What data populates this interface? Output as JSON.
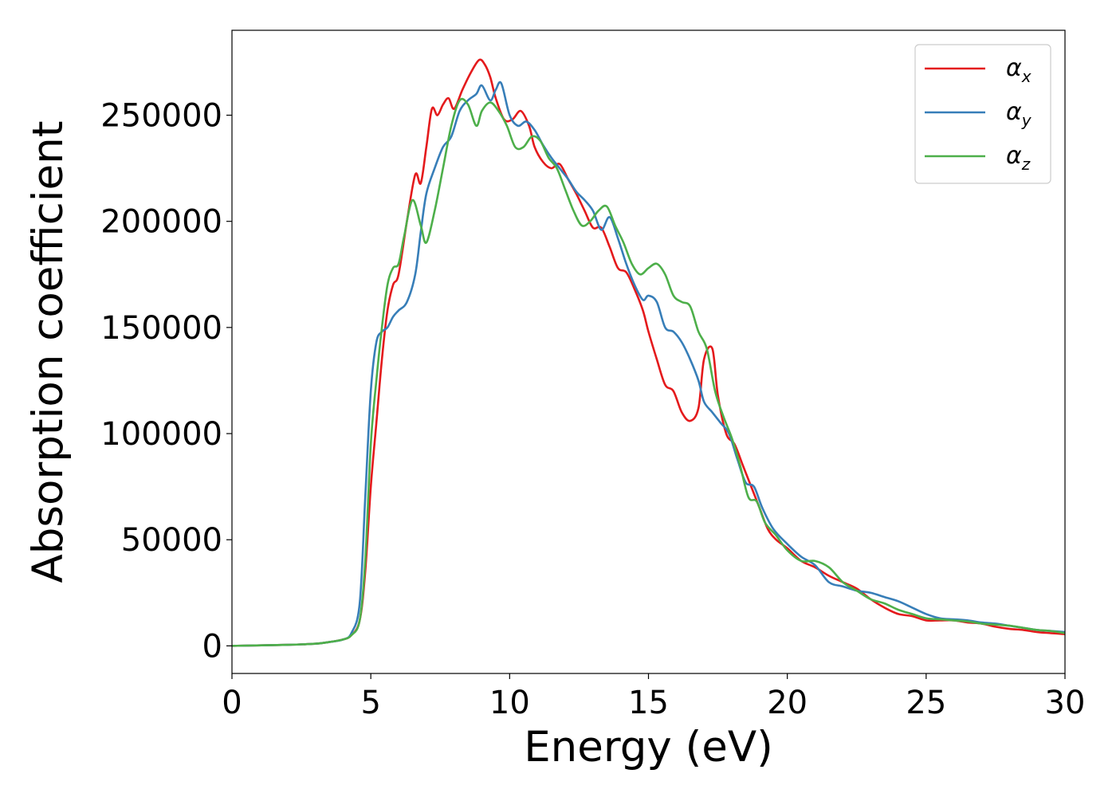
{
  "chart_data": {
    "type": "line",
    "xlabel": "Energy (eV)",
    "ylabel": "Absorption coefficient",
    "xlim": [
      0,
      30
    ],
    "ylim": [
      -13000,
      290000
    ],
    "xticks": [
      0,
      5,
      10,
      15,
      20,
      25,
      30
    ],
    "xtick_labels": [
      "0",
      "5",
      "10",
      "15",
      "20",
      "25",
      "30"
    ],
    "yticks": [
      0,
      50000,
      100000,
      150000,
      200000,
      250000
    ],
    "ytick_labels": [
      "0",
      "50000",
      "100000",
      "150000",
      "200000",
      "250000"
    ],
    "grid": false,
    "legend_position": "top-right",
    "series": [
      {
        "name": "α",
        "name_subscript": "x",
        "color": "#e41a1c",
        "x": [
          0,
          2,
          3,
          3.5,
          4,
          4.3,
          4.6,
          4.8,
          5.0,
          5.2,
          5.4,
          5.6,
          5.8,
          6.0,
          6.3,
          6.6,
          6.8,
          7.0,
          7.2,
          7.4,
          7.6,
          7.8,
          8.0,
          8.3,
          8.6,
          8.9,
          9.1,
          9.3,
          9.5,
          9.8,
          10.1,
          10.4,
          10.7,
          10.9,
          11.2,
          11.5,
          11.8,
          12.1,
          12.4,
          12.7,
          13.0,
          13.3,
          13.6,
          13.9,
          14.2,
          14.5,
          14.8,
          15.0,
          15.3,
          15.6,
          15.9,
          16.2,
          16.5,
          16.8,
          17.0,
          17.3,
          17.5,
          17.8,
          18.1,
          18.4,
          18.7,
          19.0,
          19.3,
          19.6,
          20.0,
          20.5,
          21.0,
          21.5,
          22.0,
          22.5,
          23.0,
          23.5,
          24.0,
          24.5,
          25.0,
          25.5,
          26.0,
          26.5,
          27.0,
          27.5,
          28.0,
          28.5,
          29.0,
          29.5,
          30.0
        ],
        "y": [
          0,
          500,
          1000,
          1800,
          3000,
          5000,
          12000,
          35000,
          75000,
          105000,
          135000,
          158000,
          170000,
          175000,
          200000,
          222000,
          218000,
          235000,
          253000,
          250000,
          255000,
          258000,
          253000,
          262000,
          270000,
          276000,
          274000,
          268000,
          258000,
          248000,
          248000,
          252000,
          245000,
          235000,
          228000,
          225000,
          227000,
          220000,
          213000,
          205000,
          197000,
          197000,
          188000,
          178000,
          176000,
          168000,
          158000,
          148000,
          135000,
          123000,
          120000,
          110000,
          106000,
          112000,
          135000,
          140000,
          118000,
          100000,
          95000,
          85000,
          75000,
          65000,
          55000,
          50000,
          46000,
          40000,
          37000,
          33000,
          30000,
          27000,
          22000,
          18000,
          15000,
          14000,
          12000,
          12000,
          12000,
          11000,
          10500,
          9000,
          8000,
          7500,
          6500,
          6000,
          5500
        ]
      },
      {
        "name": "α",
        "name_subscript": "y",
        "color": "#377eb8",
        "x": [
          0,
          2,
          3,
          3.5,
          4,
          4.3,
          4.6,
          4.8,
          5.0,
          5.2,
          5.4,
          5.6,
          5.8,
          6.0,
          6.3,
          6.6,
          6.8,
          7.0,
          7.3,
          7.6,
          7.9,
          8.2,
          8.5,
          8.8,
          9.0,
          9.3,
          9.5,
          9.7,
          10.0,
          10.3,
          10.6,
          10.9,
          11.2,
          11.5,
          11.8,
          12.1,
          12.4,
          12.7,
          13.0,
          13.3,
          13.6,
          13.9,
          14.2,
          14.5,
          14.8,
          15.0,
          15.3,
          15.6,
          15.9,
          16.2,
          16.5,
          16.8,
          17.0,
          17.3,
          17.6,
          17.9,
          18.2,
          18.5,
          18.8,
          19.1,
          19.5,
          20.0,
          20.5,
          21.0,
          21.5,
          22.0,
          22.5,
          23.0,
          23.5,
          24.0,
          24.5,
          25.0,
          25.5,
          26.0,
          26.5,
          27.0,
          27.5,
          28.0,
          28.5,
          29.0,
          29.5,
          30.0
        ],
        "y": [
          0,
          500,
          1000,
          1800,
          3000,
          6000,
          20000,
          70000,
          120000,
          143000,
          148000,
          150000,
          155000,
          158000,
          162000,
          175000,
          195000,
          213000,
          225000,
          235000,
          240000,
          252000,
          257000,
          260000,
          264000,
          257000,
          262000,
          265000,
          250000,
          245000,
          247000,
          243000,
          236000,
          230000,
          225000,
          220000,
          214000,
          210000,
          205000,
          196000,
          202000,
          192000,
          180000,
          170000,
          163000,
          165000,
          162000,
          150000,
          148000,
          143000,
          135000,
          125000,
          115000,
          110000,
          105000,
          100000,
          88000,
          77000,
          75000,
          65000,
          55000,
          48000,
          42000,
          38000,
          30000,
          28000,
          26000,
          25000,
          23000,
          21000,
          18000,
          15000,
          13000,
          12500,
          12000,
          11000,
          10500,
          9500,
          8500,
          7500,
          7000,
          6500
        ]
      },
      {
        "name": "α",
        "name_subscript": "z",
        "color": "#4daf4a",
        "x": [
          0,
          2,
          3,
          3.5,
          4,
          4.3,
          4.6,
          4.8,
          5.0,
          5.2,
          5.4,
          5.6,
          5.8,
          6.0,
          6.2,
          6.5,
          6.8,
          7.0,
          7.3,
          7.6,
          7.9,
          8.2,
          8.5,
          8.8,
          9.0,
          9.3,
          9.6,
          9.9,
          10.2,
          10.5,
          10.8,
          11.1,
          11.4,
          11.7,
          12.0,
          12.3,
          12.6,
          12.9,
          13.2,
          13.5,
          13.8,
          14.1,
          14.4,
          14.7,
          15.0,
          15.3,
          15.6,
          15.9,
          16.2,
          16.5,
          16.8,
          17.1,
          17.4,
          17.7,
          18.0,
          18.3,
          18.6,
          18.9,
          19.2,
          19.6,
          20.0,
          20.5,
          21.0,
          21.5,
          22.0,
          22.5,
          23.0,
          23.5,
          24.0,
          24.5,
          25.0,
          25.5,
          26.0,
          26.5,
          27.0,
          27.5,
          28.0,
          28.5,
          29.0,
          29.5,
          30.0
        ],
        "y": [
          0,
          500,
          1000,
          1800,
          3000,
          5000,
          12000,
          40000,
          95000,
          125000,
          150000,
          170000,
          178000,
          180000,
          193000,
          210000,
          198000,
          190000,
          205000,
          225000,
          245000,
          257000,
          255000,
          245000,
          252000,
          256000,
          252000,
          245000,
          235000,
          235000,
          240000,
          238000,
          230000,
          225000,
          215000,
          205000,
          198000,
          200000,
          205000,
          207000,
          198000,
          190000,
          180000,
          175000,
          178000,
          180000,
          175000,
          165000,
          162000,
          160000,
          148000,
          140000,
          120000,
          108000,
          98000,
          85000,
          70000,
          68000,
          58000,
          52000,
          45000,
          40000,
          40000,
          37000,
          30000,
          26000,
          22000,
          20000,
          17000,
          15000,
          13000,
          12500,
          12000,
          11500,
          10500,
          10000,
          9500,
          8500,
          7500,
          7000,
          6000
        ]
      }
    ]
  }
}
